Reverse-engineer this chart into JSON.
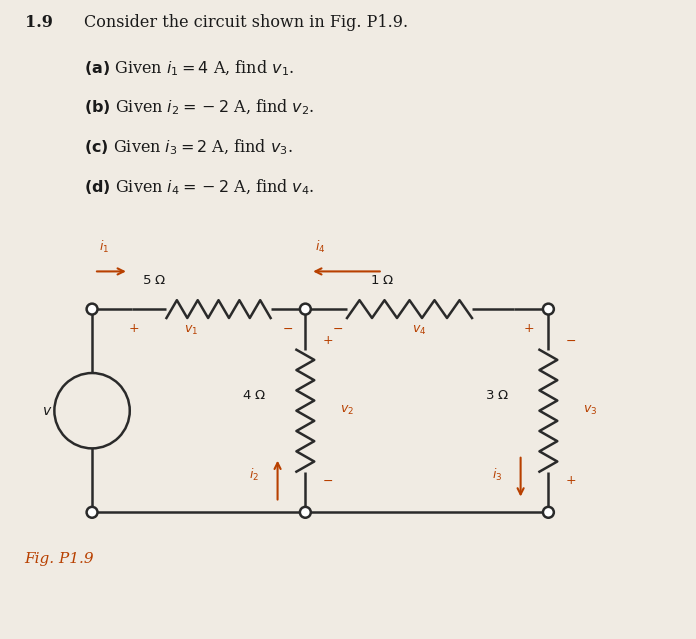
{
  "background_color": "#f0ebe3",
  "title_number": "1.9",
  "orange_color": "#b84000",
  "dark_color": "#1a1a1a",
  "wire_color": "#2a2a2a",
  "fig_label": "Fig. P1.9"
}
